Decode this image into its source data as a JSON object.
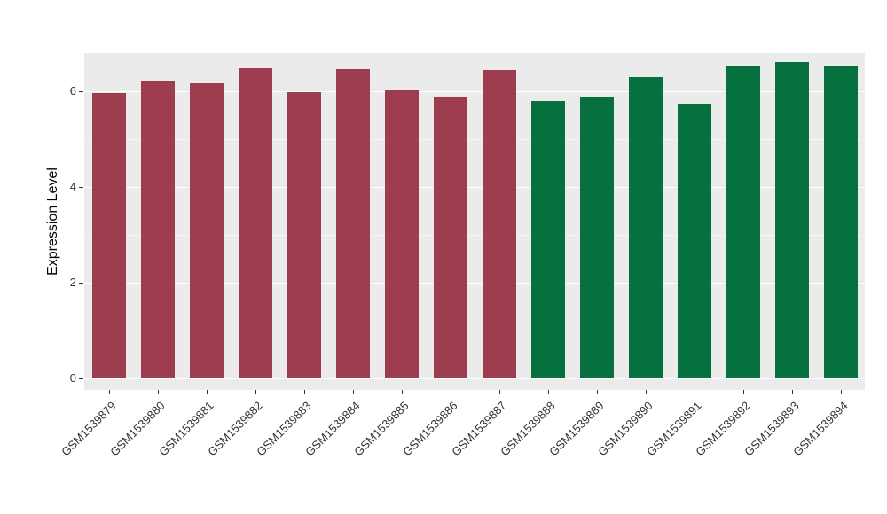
{
  "chart_data": {
    "type": "bar",
    "title": "",
    "xlabel": "",
    "ylabel": "Expression Level",
    "categories": [
      "GSM1539879",
      "GSM1539880",
      "GSM1539881",
      "GSM1539882",
      "GSM1539883",
      "GSM1539884",
      "GSM1539885",
      "GSM1539886",
      "GSM1539887",
      "GSM1539888",
      "GSM1539889",
      "GSM1539890",
      "GSM1539891",
      "GSM1539892",
      "GSM1539893",
      "GSM1539894"
    ],
    "values": [
      5.97,
      6.22,
      6.17,
      6.48,
      5.98,
      6.46,
      6.02,
      5.87,
      6.44,
      5.8,
      5.89,
      6.29,
      5.74,
      6.51,
      6.61,
      6.54
    ],
    "bar_colors": [
      "#9E3D4F",
      "#9E3D4F",
      "#9E3D4F",
      "#9E3D4F",
      "#9E3D4F",
      "#9E3D4F",
      "#9E3D4F",
      "#9E3D4F",
      "#9E3D4F",
      "#06713F",
      "#06713F",
      "#06713F",
      "#06713F",
      "#06713F",
      "#06713F",
      "#06713F"
    ],
    "ylim": [
      0,
      6.8
    ],
    "yticks": [
      0,
      2,
      4,
      6
    ],
    "minor_gridlines": [
      1,
      3,
      5
    ],
    "grid": true,
    "legend": "none",
    "panel_background": "#EBEBEB",
    "grid_color": "#FFFFFF",
    "tick_text_color": "#333333"
  }
}
